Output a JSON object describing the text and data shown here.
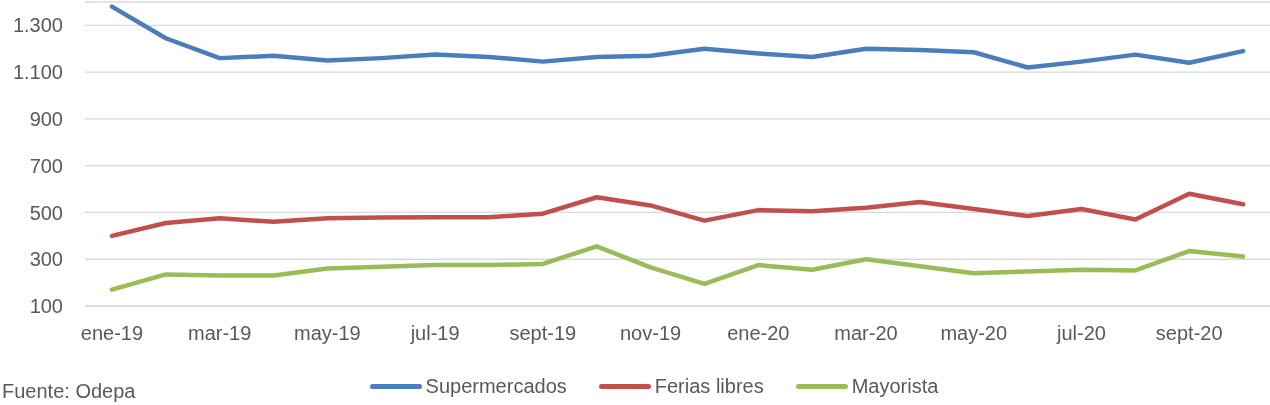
{
  "chart_data": {
    "type": "line",
    "categories": [
      "ene-19",
      null,
      "mar-19",
      null,
      "may-19",
      null,
      "jul-19",
      null,
      "sept-19",
      null,
      "nov-19",
      null,
      "ene-20",
      null,
      "mar-20",
      null,
      "may-20",
      null,
      "jul-20",
      null,
      "sept-20",
      null
    ],
    "series": [
      {
        "name": "Supermercados",
        "color": "#4a7ebb",
        "values": [
          1380,
          1245,
          1160,
          1170,
          1150,
          1160,
          1175,
          1165,
          1145,
          1165,
          1170,
          1200,
          1180,
          1165,
          1200,
          1195,
          1185,
          1120,
          1145,
          1175,
          1140,
          1190
        ]
      },
      {
        "name": "Ferias libres",
        "color": "#c0504d",
        "values": [
          400,
          455,
          475,
          460,
          475,
          478,
          480,
          480,
          495,
          565,
          530,
          465,
          510,
          505,
          520,
          545,
          515,
          485,
          515,
          470,
          580,
          535
        ]
      },
      {
        "name": "Mayorista",
        "color": "#9bbb59",
        "values": [
          170,
          235,
          230,
          230,
          260,
          268,
          275,
          275,
          280,
          355,
          265,
          195,
          275,
          255,
          300,
          270,
          240,
          248,
          255,
          252,
          335,
          312
        ]
      }
    ],
    "ylim": [
      100,
      1400
    ],
    "yticks": [
      100,
      300,
      500,
      700,
      900,
      {
        "value": 1100,
        "label": "1.100"
      },
      {
        "value": 1300,
        "label": "1.300"
      }
    ],
    "grid": "y",
    "legend": "bottom",
    "marker": "none",
    "line_style": "solid",
    "annotations": [
      "Fuente: Odepa"
    ]
  }
}
